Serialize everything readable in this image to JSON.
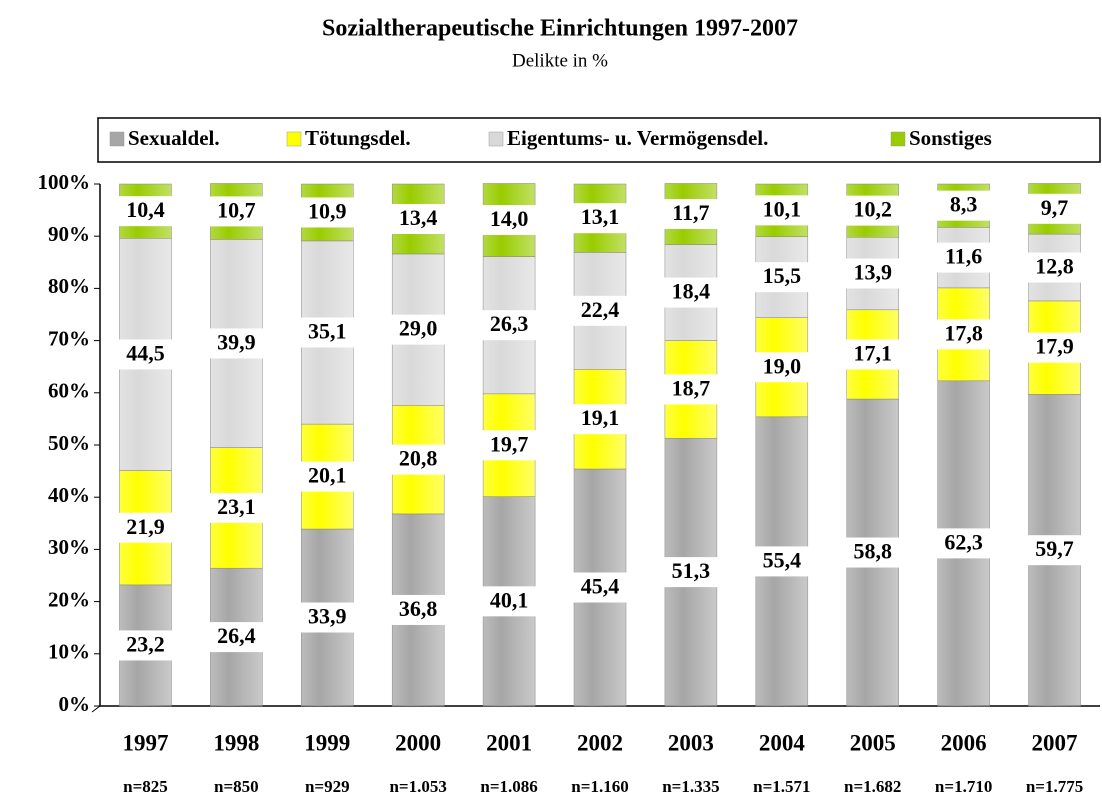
{
  "chart_data": {
    "type": "stacked_bar",
    "title": "Sozialtherapeutische Einrichtungen 1997-2007",
    "subtitle": "Delikte in %",
    "categories": [
      "1997",
      "1998",
      "1999",
      "2000",
      "2001",
      "2002",
      "2003",
      "2004",
      "2005",
      "2006",
      "2007"
    ],
    "n_labels": [
      "n=825",
      "n=850",
      "n=929",
      "n=1.053",
      "n=1.086",
      "n=1.160",
      "n=1.335",
      "n=1.571",
      "n=1.682",
      "n=1.710",
      "n=1.775"
    ],
    "series": [
      {
        "name": "Sexualdel.",
        "color": "#a6a6a6",
        "values": [
          23.2,
          26.4,
          33.9,
          36.8,
          40.1,
          45.4,
          51.3,
          55.4,
          58.8,
          62.3,
          59.7
        ],
        "value_labels": [
          "23,2",
          "26,4",
          "33,9",
          "36,8",
          "40,1",
          "45,4",
          "51,3",
          "55,4",
          "58,8",
          "62,3",
          "59,7"
        ]
      },
      {
        "name": "Tötungsdel.",
        "color": "#ffff00",
        "values": [
          21.9,
          23.1,
          20.1,
          20.8,
          19.7,
          19.1,
          18.7,
          19.0,
          17.1,
          17.8,
          17.9
        ],
        "value_labels": [
          "21,9",
          "23,1",
          "20,1",
          "20,8",
          "19,7",
          "19,1",
          "18,7",
          "19,0",
          "17,1",
          "17,8",
          "17,9"
        ]
      },
      {
        "name": "Eigentums- u. Vermögensdel.",
        "color": "#d9d9d9",
        "values": [
          44.5,
          39.9,
          35.1,
          29.0,
          26.3,
          22.4,
          18.4,
          15.5,
          13.9,
          11.6,
          12.8
        ],
        "value_labels": [
          "44,5",
          "39,9",
          "35,1",
          "29,0",
          "26,3",
          "22,4",
          "18,4",
          "15,5",
          "13,9",
          "11,6",
          "12,8"
        ]
      },
      {
        "name": "Sonstiges",
        "color": "#99cc00",
        "values": [
          10.4,
          10.7,
          10.9,
          13.4,
          14.0,
          13.1,
          11.7,
          10.1,
          10.2,
          8.3,
          9.7
        ],
        "value_labels": [
          "10,4",
          "10,7",
          "10,9",
          "13,4",
          "14,0",
          "13,1",
          "11,7",
          "10,1",
          "10,2",
          "8,3",
          "9,7"
        ]
      }
    ],
    "ylim": [
      0,
      100
    ],
    "yticks": [
      {
        "value": 0,
        "label": "0%"
      },
      {
        "value": 10,
        "label": "10%"
      },
      {
        "value": 20,
        "label": "20%"
      },
      {
        "value": 30,
        "label": "30%"
      },
      {
        "value": 40,
        "label": "40%"
      },
      {
        "value": 50,
        "label": "50%"
      },
      {
        "value": 60,
        "label": "60%"
      },
      {
        "value": 70,
        "label": "70%"
      },
      {
        "value": 80,
        "label": "80%"
      },
      {
        "value": 90,
        "label": "90%"
      },
      {
        "value": 100,
        "label": "100%"
      }
    ],
    "grid": false,
    "legend": "top"
  }
}
